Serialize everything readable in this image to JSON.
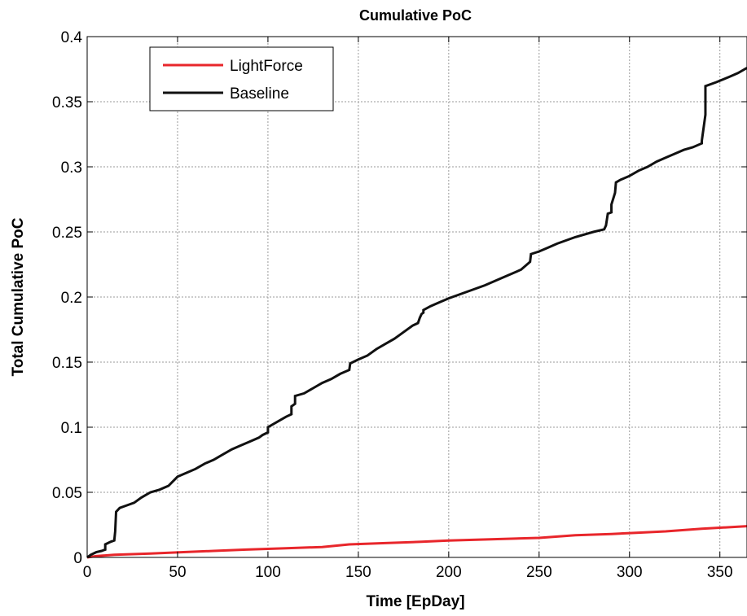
{
  "chart_data": {
    "type": "line",
    "title": "Cumulative PoC",
    "xlabel": "Time [EpDay]",
    "ylabel": "Total Cumulative PoC",
    "xlim": [
      0,
      365
    ],
    "ylim": [
      0,
      0.4
    ],
    "xticks": [
      0,
      50,
      100,
      150,
      200,
      250,
      300,
      350
    ],
    "xtick_labels": [
      "0",
      "50",
      "100",
      "150",
      "200",
      "250",
      "300",
      "350"
    ],
    "yticks": [
      0,
      0.05,
      0.1,
      0.15,
      0.2,
      0.25,
      0.3,
      0.35,
      0.4
    ],
    "ytick_labels": [
      "0",
      "0.05",
      "0.1",
      "0.15",
      "0.2",
      "0.25",
      "0.3",
      "0.35",
      "0.4"
    ],
    "grid": true,
    "legend_position": "top-left",
    "series": [
      {
        "name": "LightForce",
        "color": "#e8262b",
        "x": [
          0,
          5,
          15,
          35,
          52,
          70,
          88,
          110,
          130,
          145,
          165,
          185,
          200,
          225,
          250,
          270,
          290,
          305,
          320,
          340,
          365
        ],
        "y": [
          0,
          0.001,
          0.002,
          0.003,
          0.004,
          0.005,
          0.006,
          0.007,
          0.008,
          0.01,
          0.011,
          0.012,
          0.013,
          0.014,
          0.015,
          0.017,
          0.018,
          0.019,
          0.02,
          0.022,
          0.024
        ]
      },
      {
        "name": "Baseline",
        "color": "#111111",
        "x": [
          0,
          2,
          5,
          8,
          10,
          10,
          13,
          15,
          15.5,
          16,
          18,
          22,
          26,
          30,
          35,
          40,
          45,
          50,
          55,
          60,
          65,
          70,
          75,
          80,
          85,
          90,
          95,
          97,
          100,
          100,
          105,
          110,
          113,
          113,
          115,
          115,
          120,
          125,
          130,
          135,
          140,
          145,
          145.5,
          150,
          155,
          160,
          165,
          170,
          175,
          180,
          183,
          184,
          185,
          186,
          186,
          190,
          195,
          200,
          210,
          220,
          230,
          240,
          245,
          245.5,
          250,
          255,
          260,
          270,
          280,
          286,
          287,
          288,
          290,
          290,
          292,
          292.5,
          295,
          300,
          305,
          310,
          315,
          320,
          325,
          330,
          335,
          340,
          340,
          342,
          342,
          348,
          355,
          360,
          365
        ],
        "y": [
          0,
          0.002,
          0.004,
          0.005,
          0.006,
          0.01,
          0.012,
          0.013,
          0.02,
          0.035,
          0.038,
          0.04,
          0.042,
          0.046,
          0.05,
          0.052,
          0.055,
          0.062,
          0.065,
          0.068,
          0.072,
          0.075,
          0.079,
          0.083,
          0.086,
          0.089,
          0.092,
          0.094,
          0.096,
          0.1,
          0.104,
          0.108,
          0.11,
          0.116,
          0.118,
          0.124,
          0.126,
          0.13,
          0.134,
          0.137,
          0.141,
          0.144,
          0.149,
          0.152,
          0.155,
          0.16,
          0.164,
          0.168,
          0.173,
          0.178,
          0.18,
          0.184,
          0.187,
          0.188,
          0.19,
          0.193,
          0.196,
          0.199,
          0.204,
          0.209,
          0.215,
          0.221,
          0.227,
          0.233,
          0.235,
          0.238,
          0.241,
          0.246,
          0.25,
          0.252,
          0.255,
          0.264,
          0.265,
          0.271,
          0.28,
          0.288,
          0.29,
          0.293,
          0.297,
          0.3,
          0.304,
          0.307,
          0.31,
          0.313,
          0.315,
          0.318,
          0.32,
          0.34,
          0.362,
          0.365,
          0.369,
          0.372,
          0.376
        ]
      }
    ]
  }
}
